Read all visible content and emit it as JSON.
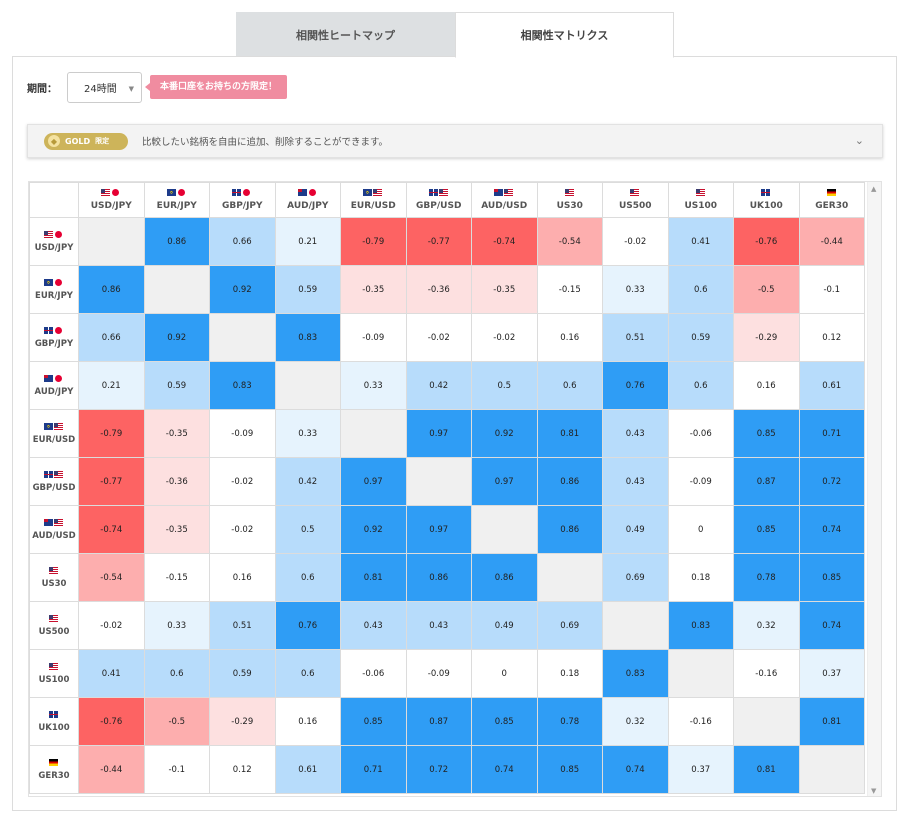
{
  "tabs": [
    {
      "label": "相関性ヒートマップ",
      "active": false
    },
    {
      "label": "相関性マトリクス",
      "active": true
    }
  ],
  "period": {
    "label": "期間：",
    "value": "24時間"
  },
  "promo": {
    "label": "本番口座をお持ちの方限定！"
  },
  "gold": {
    "badge": "GOLD",
    "limited": "限定",
    "text": "比較したい銘柄を自由に追加、削除することができます。"
  },
  "colors": {
    "strong_positive": "#2f9df5",
    "moderate_positive": "#b7dcfb",
    "weak_positive": "#e6f3fd",
    "neutral": "#ffffff",
    "weak_negative": "#fde0e0",
    "moderate_negative": "#fdaeae",
    "strong_negative": "#fd6363",
    "diagonal": "#f0f0f0"
  },
  "matrix": {
    "symbols": [
      {
        "label": "USD/JPY",
        "flags": [
          "us",
          "jp"
        ]
      },
      {
        "label": "EUR/JPY",
        "flags": [
          "eu",
          "jp"
        ]
      },
      {
        "label": "GBP/JPY",
        "flags": [
          "uk",
          "jp"
        ]
      },
      {
        "label": "AUD/JPY",
        "flags": [
          "au",
          "jp"
        ]
      },
      {
        "label": "EUR/USD",
        "flags": [
          "eu",
          "us"
        ]
      },
      {
        "label": "GBP/USD",
        "flags": [
          "uk",
          "us"
        ]
      },
      {
        "label": "AUD/USD",
        "flags": [
          "au",
          "us"
        ]
      },
      {
        "label": "US30",
        "flags": [
          "us"
        ]
      },
      {
        "label": "US500",
        "flags": [
          "us"
        ]
      },
      {
        "label": "US100",
        "flags": [
          "us"
        ]
      },
      {
        "label": "UK100",
        "flags": [
          "uk"
        ]
      },
      {
        "label": "GER30",
        "flags": [
          "de"
        ]
      }
    ],
    "values": [
      [
        null,
        "0.86",
        "0.66",
        "0.21",
        "-0.79",
        "-0.77",
        "-0.74",
        "-0.54",
        "-0.02",
        "0.41",
        "-0.76",
        "-0.44"
      ],
      [
        "0.86",
        null,
        "0.92",
        "0.59",
        "-0.35",
        "-0.36",
        "-0.35",
        "-0.15",
        "0.33",
        "0.6",
        "-0.5",
        "-0.1"
      ],
      [
        "0.66",
        "0.92",
        null,
        "0.83",
        "-0.09",
        "-0.02",
        "-0.02",
        "0.16",
        "0.51",
        "0.59",
        "-0.29",
        "0.12"
      ],
      [
        "0.21",
        "0.59",
        "0.83",
        null,
        "0.33",
        "0.42",
        "0.5",
        "0.6",
        "0.76",
        "0.6",
        "0.16",
        "0.61"
      ],
      [
        "-0.79",
        "-0.35",
        "-0.09",
        "0.33",
        null,
        "0.97",
        "0.92",
        "0.81",
        "0.43",
        "-0.06",
        "0.85",
        "0.71"
      ],
      [
        "-0.77",
        "-0.36",
        "-0.02",
        "0.42",
        "0.97",
        null,
        "0.97",
        "0.86",
        "0.43",
        "-0.09",
        "0.87",
        "0.72"
      ],
      [
        "-0.74",
        "-0.35",
        "-0.02",
        "0.5",
        "0.92",
        "0.97",
        null,
        "0.86",
        "0.49",
        "0",
        "0.85",
        "0.74"
      ],
      [
        "-0.54",
        "-0.15",
        "0.16",
        "0.6",
        "0.81",
        "0.86",
        "0.86",
        null,
        "0.69",
        "0.18",
        "0.78",
        "0.85"
      ],
      [
        "-0.02",
        "0.33",
        "0.51",
        "0.76",
        "0.43",
        "0.43",
        "0.49",
        "0.69",
        null,
        "0.83",
        "0.32",
        "0.74"
      ],
      [
        "0.41",
        "0.6",
        "0.59",
        "0.6",
        "-0.06",
        "-0.09",
        "0",
        "0.18",
        "0.83",
        null,
        "-0.16",
        "0.37"
      ],
      [
        "-0.76",
        "-0.5",
        "-0.29",
        "0.16",
        "0.85",
        "0.87",
        "0.85",
        "0.78",
        "0.32",
        "-0.16",
        null,
        "0.81"
      ],
      [
        "-0.44",
        "-0.1",
        "0.12",
        "0.61",
        "0.71",
        "0.72",
        "0.74",
        "0.85",
        "0.74",
        "0.37",
        "0.81",
        null
      ]
    ]
  }
}
